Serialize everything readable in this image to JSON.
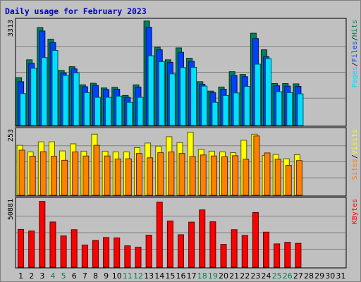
{
  "chart_data": {
    "type": "bar",
    "title": "Daily usage for February 2023",
    "days": [
      "1",
      "2",
      "3",
      "4",
      "5",
      "6",
      "7",
      "8",
      "9",
      "10",
      "11",
      "12",
      "13",
      "14",
      "15",
      "16",
      "17",
      "18",
      "19",
      "20",
      "21",
      "22",
      "23",
      "24",
      "25",
      "26",
      "27",
      "28",
      "29",
      "30",
      "31"
    ],
    "weekend_days": [
      4,
      5,
      11,
      12,
      18,
      19,
      25,
      26
    ],
    "panels": [
      {
        "name": "hits-files-pages",
        "scale_label": "3313",
        "ymax": 3313,
        "legend": [
          {
            "text": "Pages",
            "color": "#00e0ff"
          },
          {
            "text": "/",
            "color": "#000000"
          },
          {
            "text": "Files",
            "color": "#0040ff"
          },
          {
            "text": "/",
            "color": "#000000"
          },
          {
            "text": "Hits",
            "color": "#00805c"
          }
        ],
        "series": [
          {
            "name": "Hits",
            "color": "#00805c",
            "values": [
              1530,
              2100,
              3130,
              2760,
              1760,
              1880,
              1300,
              1350,
              1200,
              1220,
              960,
              1300,
              3340,
              2500,
              2100,
              2480,
              2150,
              1400,
              1100,
              1230,
              1720,
              1630,
              2950,
              2420,
              1340,
              1340,
              1330,
              null,
              null,
              null,
              null
            ]
          },
          {
            "name": "Files",
            "color": "#0040ff",
            "values": [
              1400,
              1990,
              3020,
              2650,
              1680,
              1810,
              1240,
              1280,
              1150,
              1160,
              900,
              1230,
              3140,
              2420,
              2020,
              2340,
              2050,
              1320,
              1050,
              1160,
              1600,
              1560,
              2780,
              2200,
              1270,
              1260,
              1250,
              null,
              null,
              null,
              null
            ]
          },
          {
            "name": "Pages",
            "color": "#00e0ff",
            "values": [
              1020,
              1830,
              2170,
              2400,
              1600,
              1680,
              1050,
              900,
              900,
              940,
              740,
              900,
              2230,
              2040,
              1650,
              1850,
              1860,
              1260,
              740,
              960,
              1040,
              1250,
              1960,
              2140,
              1080,
              1050,
              1010,
              null,
              null,
              null,
              null
            ]
          }
        ]
      },
      {
        "name": "visits-sites",
        "scale_label": "253",
        "ymax": 253,
        "legend": [
          {
            "text": "Sites",
            "color": "#ff8000"
          },
          {
            "text": "/",
            "color": "#000000"
          },
          {
            "text": "Visits",
            "color": "#ffff00"
          }
        ],
        "series": [
          {
            "name": "Visits",
            "color": "#ffff00",
            "values": [
              197,
              171,
              211,
              211,
              175,
              203,
              174,
              241,
              174,
              171,
              171,
              188,
              206,
              194,
              231,
              208,
              249,
              181,
              174,
              171,
              168,
              217,
              241,
              157,
              161,
              144,
              160,
              null,
              null,
              null,
              null
            ]
          },
          {
            "name": "Sites",
            "color": "#ff8000",
            "values": [
              178,
              154,
              172,
              154,
              138,
              171,
              155,
              197,
              155,
              143,
              144,
              165,
              148,
              168,
              171,
              165,
              153,
              159,
              155,
              152,
              156,
              142,
              234,
              167,
              142,
              118,
              137,
              null,
              null,
              null,
              null
            ]
          }
        ]
      },
      {
        "name": "kbytes",
        "scale_label": "50881",
        "ymax": 50881,
        "legend": [
          {
            "text": "KBytes",
            "color": "#ff0000"
          }
        ],
        "series": [
          {
            "name": "KBytes",
            "color": "#ff0000",
            "values": [
              29000,
              27800,
              50500,
              34700,
              24000,
              28800,
              17000,
              20500,
              22800,
              22500,
              16400,
              15400,
              24600,
              50000,
              35500,
              24900,
              34600,
              44000,
              34900,
              17500,
              28800,
              24400,
              42000,
              26900,
              17900,
              19100,
              18300,
              null,
              null,
              null,
              null
            ]
          }
        ]
      }
    ]
  }
}
